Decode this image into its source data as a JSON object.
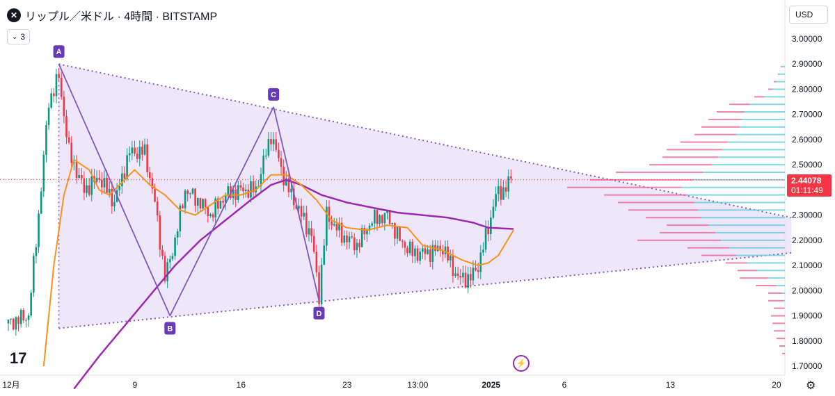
{
  "header": {
    "symbol_icon": "x-close-icon",
    "symbol_glyph": "✕",
    "title": "リップル／米ドル · 4時間 · BITSTAMP",
    "indicator_count": "3",
    "currency": "USD"
  },
  "price_tag": {
    "price": "2.44078",
    "countdown": "01:11:49"
  },
  "colors": {
    "up": "#089981",
    "down": "#f23645",
    "ma_fast": "#f7931a",
    "ma_slow": "#9c27b0",
    "triangle_fill": "#e8def7",
    "pattern": "#7e57c2",
    "label_bg": "#673ab7",
    "vp_up": "#5ccfe0",
    "vp_down": "#f06292"
  },
  "chart_data": {
    "type": "candlestick",
    "title": "",
    "y_ticks": [
      "3.00000",
      "2.90000",
      "2.80000",
      "2.70000",
      "2.60000",
      "2.50000",
      "2.40000",
      "2.30000",
      "2.20000",
      "2.10000",
      "2.00000",
      "1.90000",
      "1.80000",
      "1.70000"
    ],
    "ylim": [
      1.685,
      3.07
    ],
    "x_ticks": [
      "12月",
      "9",
      "16",
      "23",
      "13:00",
      "2025",
      "6",
      "13",
      "20"
    ],
    "x_tick_bars": [
      0,
      49,
      91,
      133,
      161,
      190,
      219,
      261,
      303
    ],
    "n_bars_visible": 310,
    "last_price": 2.44078,
    "pattern": {
      "name": "ABCD",
      "points": [
        {
          "label": "A",
          "bar": 20,
          "price": 2.9
        },
        {
          "label": "B",
          "bar": 64,
          "price": 1.9
        },
        {
          "label": "C",
          "bar": 105,
          "price": 2.73
        },
        {
          "label": "D",
          "bar": 123,
          "price": 1.96
        }
      ]
    },
    "triangle": {
      "upper": [
        {
          "bar": 20,
          "price": 2.9
        },
        {
          "bar": 310,
          "price": 2.29
        }
      ],
      "lower": [
        {
          "bar": 20,
          "price": 1.85
        },
        {
          "bar": 310,
          "price": 2.15
        }
      ],
      "left_edge": [
        {
          "bar": 20,
          "price": 2.9
        },
        {
          "bar": 20,
          "price": 1.85
        }
      ]
    },
    "price_line": 2.44078,
    "ohlc_anchors": [
      {
        "bar": 0,
        "close": 1.87
      },
      {
        "bar": 8,
        "close": 1.9
      },
      {
        "bar": 12,
        "close": 2.3
      },
      {
        "bar": 16,
        "close": 2.75
      },
      {
        "bar": 20,
        "close": 2.85
      },
      {
        "bar": 24,
        "close": 2.55
      },
      {
        "bar": 30,
        "close": 2.4
      },
      {
        "bar": 36,
        "close": 2.45
      },
      {
        "bar": 42,
        "close": 2.35
      },
      {
        "bar": 48,
        "close": 2.55
      },
      {
        "bar": 54,
        "close": 2.55
      },
      {
        "bar": 58,
        "close": 2.35
      },
      {
        "bar": 62,
        "close": 2.05
      },
      {
        "bar": 66,
        "close": 2.2
      },
      {
        "bar": 70,
        "close": 2.4
      },
      {
        "bar": 76,
        "close": 2.35
      },
      {
        "bar": 80,
        "close": 2.3
      },
      {
        "bar": 86,
        "close": 2.38
      },
      {
        "bar": 92,
        "close": 2.4
      },
      {
        "bar": 98,
        "close": 2.4
      },
      {
        "bar": 104,
        "close": 2.62
      },
      {
        "bar": 110,
        "close": 2.42
      },
      {
        "bar": 116,
        "close": 2.3
      },
      {
        "bar": 120,
        "close": 2.22
      },
      {
        "bar": 123,
        "close": 1.98
      },
      {
        "bar": 126,
        "close": 2.3
      },
      {
        "bar": 132,
        "close": 2.22
      },
      {
        "bar": 138,
        "close": 2.18
      },
      {
        "bar": 144,
        "close": 2.28
      },
      {
        "bar": 150,
        "close": 2.3
      },
      {
        "bar": 155,
        "close": 2.2
      },
      {
        "bar": 160,
        "close": 2.15
      },
      {
        "bar": 166,
        "close": 2.15
      },
      {
        "bar": 172,
        "close": 2.17
      },
      {
        "bar": 178,
        "close": 2.05
      },
      {
        "bar": 183,
        "close": 2.05
      },
      {
        "bar": 186,
        "close": 2.1
      },
      {
        "bar": 190,
        "close": 2.25
      },
      {
        "bar": 193,
        "close": 2.38
      },
      {
        "bar": 196,
        "close": 2.4
      },
      {
        "bar": 199,
        "close": 2.44
      }
    ],
    "ma_fast_anchors": [
      {
        "bar": 14,
        "value": 1.7
      },
      {
        "bar": 18,
        "value": 2.1
      },
      {
        "bar": 22,
        "value": 2.38
      },
      {
        "bar": 26,
        "value": 2.52
      },
      {
        "bar": 32,
        "value": 2.48
      },
      {
        "bar": 36,
        "value": 2.4
      },
      {
        "bar": 40,
        "value": 2.38
      },
      {
        "bar": 46,
        "value": 2.44
      },
      {
        "bar": 50,
        "value": 2.48
      },
      {
        "bar": 56,
        "value": 2.42
      },
      {
        "bar": 62,
        "value": 2.38
      },
      {
        "bar": 68,
        "value": 2.32
      },
      {
        "bar": 74,
        "value": 2.3
      },
      {
        "bar": 80,
        "value": 2.34
      },
      {
        "bar": 86,
        "value": 2.38
      },
      {
        "bar": 92,
        "value": 2.38
      },
      {
        "bar": 98,
        "value": 2.4
      },
      {
        "bar": 104,
        "value": 2.46
      },
      {
        "bar": 110,
        "value": 2.46
      },
      {
        "bar": 116,
        "value": 2.42
      },
      {
        "bar": 122,
        "value": 2.36
      },
      {
        "bar": 128,
        "value": 2.28
      },
      {
        "bar": 134,
        "value": 2.25
      },
      {
        "bar": 142,
        "value": 2.24
      },
      {
        "bar": 150,
        "value": 2.26
      },
      {
        "bar": 158,
        "value": 2.25
      },
      {
        "bar": 164,
        "value": 2.18
      },
      {
        "bar": 172,
        "value": 2.16
      },
      {
        "bar": 180,
        "value": 2.12
      },
      {
        "bar": 186,
        "value": 2.1
      },
      {
        "bar": 190,
        "value": 2.11
      },
      {
        "bar": 194,
        "value": 2.14
      },
      {
        "bar": 200,
        "value": 2.24
      }
    ],
    "ma_slow_anchors": [
      {
        "bar": 26,
        "value": 1.61
      },
      {
        "bar": 36,
        "value": 1.74
      },
      {
        "bar": 46,
        "value": 1.86
      },
      {
        "bar": 56,
        "value": 1.98
      },
      {
        "bar": 66,
        "value": 2.1
      },
      {
        "bar": 76,
        "value": 2.2
      },
      {
        "bar": 86,
        "value": 2.28
      },
      {
        "bar": 96,
        "value": 2.36
      },
      {
        "bar": 104,
        "value": 2.42
      },
      {
        "bar": 110,
        "value": 2.44
      },
      {
        "bar": 116,
        "value": 2.42
      },
      {
        "bar": 124,
        "value": 2.38
      },
      {
        "bar": 134,
        "value": 2.35
      },
      {
        "bar": 144,
        "value": 2.33
      },
      {
        "bar": 154,
        "value": 2.31
      },
      {
        "bar": 164,
        "value": 2.3
      },
      {
        "bar": 174,
        "value": 2.29
      },
      {
        "bar": 184,
        "value": 2.27
      },
      {
        "bar": 190,
        "value": 2.25
      },
      {
        "bar": 200,
        "value": 2.245
      }
    ],
    "volume_profile": [
      {
        "price": 2.89,
        "up": 5,
        "down": 1
      },
      {
        "price": 2.86,
        "up": 8,
        "down": 2
      },
      {
        "price": 2.83,
        "up": 12,
        "down": 4
      },
      {
        "price": 2.8,
        "up": 18,
        "down": 6
      },
      {
        "price": 2.77,
        "up": 30,
        "down": 14
      },
      {
        "price": 2.74,
        "up": 50,
        "down": 30
      },
      {
        "price": 2.71,
        "up": 58,
        "down": 40
      },
      {
        "price": 2.68,
        "up": 62,
        "down": 48
      },
      {
        "price": 2.65,
        "up": 65,
        "down": 55
      },
      {
        "price": 2.62,
        "up": 70,
        "down": 60
      },
      {
        "price": 2.59,
        "up": 82,
        "down": 68
      },
      {
        "price": 2.56,
        "up": 90,
        "down": 80
      },
      {
        "price": 2.53,
        "up": 96,
        "down": 80
      },
      {
        "price": 2.5,
        "up": 105,
        "down": 90
      },
      {
        "price": 2.47,
        "up": 118,
        "down": 125
      },
      {
        "price": 2.44,
        "up": 132,
        "down": 148
      },
      {
        "price": 2.41,
        "up": 148,
        "down": 165
      },
      {
        "price": 2.38,
        "up": 140,
        "down": 120
      },
      {
        "price": 2.35,
        "up": 130,
        "down": 110
      },
      {
        "price": 2.32,
        "up": 125,
        "down": 100
      },
      {
        "price": 2.29,
        "up": 120,
        "down": 80
      },
      {
        "price": 2.26,
        "up": 110,
        "down": 60
      },
      {
        "price": 2.23,
        "up": 100,
        "down": 80
      },
      {
        "price": 2.2,
        "up": 92,
        "down": 120
      },
      {
        "price": 2.17,
        "up": 80,
        "down": 60
      },
      {
        "price": 2.14,
        "up": 70,
        "down": 50
      },
      {
        "price": 2.11,
        "up": 55,
        "down": 30
      },
      {
        "price": 2.08,
        "up": 40,
        "down": 28
      },
      {
        "price": 2.05,
        "up": 25,
        "down": 40
      },
      {
        "price": 2.02,
        "up": 12,
        "down": 30
      },
      {
        "price": 1.99,
        "up": 4,
        "down": 20
      },
      {
        "price": 1.96,
        "up": 2,
        "down": 22
      },
      {
        "price": 1.93,
        "up": 1,
        "down": 15
      },
      {
        "price": 1.9,
        "up": 0,
        "down": 20
      },
      {
        "price": 1.87,
        "up": 0,
        "down": 18
      },
      {
        "price": 1.84,
        "up": 0,
        "down": 16
      },
      {
        "price": 1.81,
        "up": 0,
        "down": 12
      },
      {
        "price": 1.78,
        "up": 0,
        "down": 8
      },
      {
        "price": 1.75,
        "up": 0,
        "down": 4
      }
    ]
  }
}
